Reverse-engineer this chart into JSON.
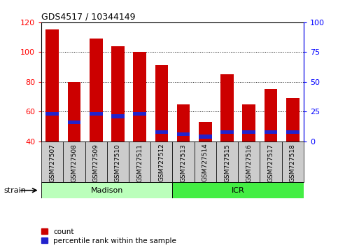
{
  "title": "GDS4517 / 10344149",
  "samples": [
    "GSM727507",
    "GSM727508",
    "GSM727509",
    "GSM727510",
    "GSM727511",
    "GSM727512",
    "GSM727513",
    "GSM727514",
    "GSM727515",
    "GSM727516",
    "GSM727517",
    "GSM727518"
  ],
  "counts": [
    115,
    80,
    109,
    104,
    100,
    91,
    65,
    53,
    85,
    65,
    75,
    69
  ],
  "percentile_pct": [
    23,
    16,
    23,
    21,
    23,
    8,
    6,
    4,
    8,
    8,
    8,
    8
  ],
  "strains": [
    {
      "label": "Madison",
      "start": 0,
      "end": 6,
      "color": "#bbffbb"
    },
    {
      "label": "ICR",
      "start": 6,
      "end": 12,
      "color": "#44ee44"
    }
  ],
  "ylim_left": [
    40,
    120
  ],
  "ylim_right": [
    0,
    100
  ],
  "yticks_left": [
    40,
    60,
    80,
    100,
    120
  ],
  "yticks_right": [
    0,
    25,
    50,
    75,
    100
  ],
  "bar_color": "#cc0000",
  "blue_color": "#2222cc",
  "legend_count_label": "count",
  "legend_pct_label": "percentile rank within the sample",
  "strain_label": "strain"
}
